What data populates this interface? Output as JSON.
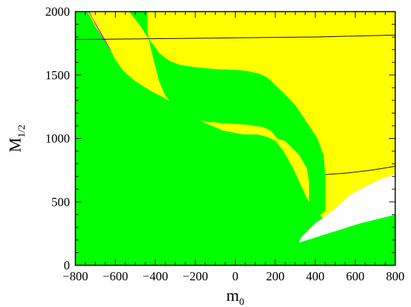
{
  "chart_data": {
    "type": "area",
    "title": "",
    "xlabel": {
      "main": "m",
      "sub": "0"
    },
    "ylabel": {
      "main": "M",
      "sub": "1/2"
    },
    "xlim": [
      -800,
      800
    ],
    "ylim": [
      0,
      2000
    ],
    "xticks": [
      -800,
      -600,
      -400,
      -200,
      0,
      200,
      400,
      600,
      800
    ],
    "yticks": [
      0,
      500,
      1000,
      1500,
      2000
    ],
    "xtick_labels": [
      "−800",
      "−600",
      "−400",
      "−200",
      "0",
      "200",
      "400",
      "600",
      "800"
    ],
    "ytick_labels": [
      "0",
      "500",
      "1000",
      "1500",
      "2000"
    ],
    "colors": {
      "background": "#ffff00",
      "green": "#00ff00",
      "white": "#ffffff",
      "magenta": "#ff00ff",
      "line": "#000000"
    },
    "regions": [
      {
        "name": "green-lower-left",
        "color": "green",
        "points": [
          [
            -800,
            0
          ],
          [
            -800,
            2000
          ],
          [
            -740,
            2000
          ],
          [
            -700,
            1880
          ],
          [
            -650,
            1770
          ],
          [
            -600,
            1620
          ],
          [
            -560,
            1530
          ],
          [
            -500,
            1450
          ],
          [
            -430,
            1380
          ],
          [
            -370,
            1330
          ],
          [
            -300,
            1270
          ],
          [
            -230,
            1200
          ],
          [
            -150,
            1120
          ],
          [
            -60,
            1060
          ],
          [
            40,
            1030
          ],
          [
            110,
            1030
          ],
          [
            160,
            1010
          ],
          [
            200,
            980
          ],
          [
            240,
            900
          ],
          [
            290,
            760
          ],
          [
            330,
            620
          ],
          [
            360,
            520
          ],
          [
            400,
            420
          ],
          [
            450,
            360
          ],
          [
            470,
            330
          ],
          [
            480,
            310
          ],
          [
            800,
            400
          ],
          [
            800,
            0
          ]
        ]
      },
      {
        "name": "green-upper-band",
        "color": "green",
        "points": [
          [
            -530,
            2000
          ],
          [
            -480,
            1900
          ],
          [
            -430,
            1780
          ],
          [
            -380,
            1670
          ],
          [
            -330,
            1610
          ],
          [
            -280,
            1580
          ],
          [
            -200,
            1560
          ],
          [
            -100,
            1545
          ],
          [
            0,
            1540
          ],
          [
            60,
            1530
          ],
          [
            120,
            1510
          ],
          [
            160,
            1480
          ],
          [
            200,
            1420
          ],
          [
            240,
            1360
          ],
          [
            300,
            1260
          ],
          [
            360,
            1120
          ],
          [
            410,
            1000
          ],
          [
            440,
            870
          ],
          [
            450,
            700
          ],
          [
            450,
            430
          ],
          [
            390,
            360
          ],
          [
            370,
            470
          ],
          [
            370,
            650
          ],
          [
            360,
            760
          ],
          [
            320,
            870
          ],
          [
            250,
            980
          ],
          [
            210,
            1000
          ],
          [
            180,
            1060
          ],
          [
            140,
            1090
          ],
          [
            60,
            1110
          ],
          [
            -40,
            1120
          ],
          [
            -130,
            1130
          ],
          [
            -190,
            1150
          ],
          [
            -250,
            1190
          ],
          [
            -310,
            1260
          ],
          [
            -350,
            1340
          ],
          [
            -380,
            1450
          ],
          [
            -400,
            1570
          ],
          [
            -420,
            1700
          ],
          [
            -440,
            1840
          ],
          [
            -440,
            2000
          ]
        ]
      },
      {
        "name": "white-wedge",
        "color": "white",
        "points": [
          [
            320,
            180
          ],
          [
            460,
            250
          ],
          [
            620,
            330
          ],
          [
            800,
            400
          ],
          [
            800,
            720
          ],
          [
            700,
            660
          ],
          [
            580,
            560
          ],
          [
            480,
            420
          ],
          [
            400,
            330
          ],
          [
            330,
            220
          ]
        ]
      },
      {
        "name": "magenta-sliver",
        "color": "magenta",
        "points": [
          [
            -730,
            2000
          ],
          [
            -700,
            1900
          ],
          [
            -660,
            1790
          ],
          [
            -620,
            1690
          ],
          [
            -660,
            1800
          ],
          [
            -700,
            1910
          ],
          [
            -735,
            2000
          ]
        ]
      }
    ],
    "lines": [
      {
        "name": "upper-contour",
        "color": "line",
        "points": [
          [
            -800,
            1780
          ],
          [
            -200,
            1790
          ],
          [
            100,
            1795
          ],
          [
            400,
            1800
          ],
          [
            800,
            1815
          ]
        ]
      },
      {
        "name": "lower-contour",
        "color": "line",
        "points": [
          [
            450,
            715
          ],
          [
            560,
            728
          ],
          [
            680,
            750
          ],
          [
            800,
            780
          ]
        ]
      }
    ]
  }
}
